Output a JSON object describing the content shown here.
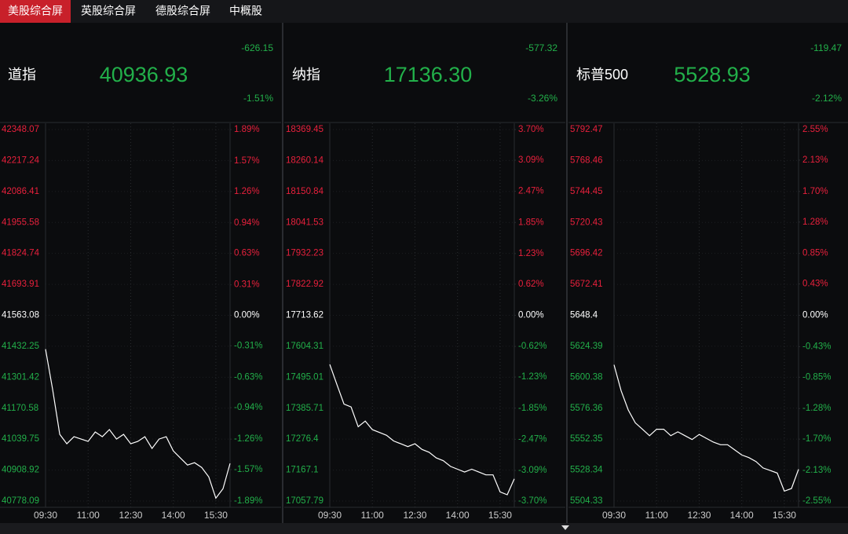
{
  "tabs": [
    {
      "label": "美股综合屏",
      "active": true
    },
    {
      "label": "英股综合屏",
      "active": false
    },
    {
      "label": "德股综合屏",
      "active": false
    },
    {
      "label": "中概股",
      "active": false
    }
  ],
  "panels": [
    {
      "name": "道指",
      "price": "40936.93",
      "change": "-626.15",
      "change_pct": "-1.51%",
      "chart": {
        "type": "line",
        "color": "#ffffff",
        "categories": [
          "09:30",
          null,
          null,
          null,
          null,
          null,
          "11:00",
          null,
          null,
          null,
          null,
          null,
          "12:30",
          null,
          null,
          null,
          null,
          null,
          "14:00",
          null,
          null,
          null,
          null,
          null,
          "15:30",
          null,
          null
        ],
        "values": [
          41420,
          41250,
          41060,
          41020,
          41050,
          41040,
          41030,
          41070,
          41050,
          41080,
          41040,
          41060,
          41020,
          41030,
          41050,
          41000,
          41040,
          41050,
          40990,
          40960,
          40930,
          40940,
          40920,
          40880,
          40790,
          40830,
          40936.93
        ],
        "ylim": [
          40778.09,
          42348.07
        ],
        "yticks": [
          42348.07,
          42217.24,
          42086.41,
          41955.58,
          41824.74,
          41693.91,
          41563.08,
          41432.25,
          41301.42,
          41170.58,
          41039.75,
          40908.92,
          40778.09
        ],
        "y2lim": [
          -1.89,
          1.89
        ],
        "y2ticks": [
          {
            "value": 1.89,
            "label": "1.89%"
          },
          {
            "value": 1.57,
            "label": "1.57%"
          },
          {
            "value": 1.26,
            "label": "1.26%"
          },
          {
            "value": 0.94,
            "label": "0.94%"
          },
          {
            "value": 0.63,
            "label": "0.63%"
          },
          {
            "value": 0.31,
            "label": "0.31%"
          },
          {
            "value": 0,
            "label": "0.00%"
          },
          {
            "value": -0.31,
            "label": "-0.31%"
          },
          {
            "value": -0.63,
            "label": "-0.63%"
          },
          {
            "value": -0.94,
            "label": "-0.94%"
          },
          {
            "value": -1.26,
            "label": "-1.26%"
          },
          {
            "value": -1.57,
            "label": "-1.57%"
          },
          {
            "value": -1.89,
            "label": "-1.89%"
          }
        ]
      }
    },
    {
      "name": "纳指",
      "price": "17136.30",
      "change": "-577.32",
      "change_pct": "-3.26%",
      "chart": {
        "type": "line",
        "color": "#ffffff",
        "categories": [
          "09:30",
          null,
          null,
          null,
          null,
          null,
          "11:00",
          null,
          null,
          null,
          null,
          null,
          "12:30",
          null,
          null,
          null,
          null,
          null,
          "14:00",
          null,
          null,
          null,
          null,
          null,
          "15:30",
          null,
          null
        ],
        "values": [
          17540,
          17470,
          17400,
          17390,
          17320,
          17340,
          17310,
          17300,
          17290,
          17270,
          17260,
          17250,
          17260,
          17240,
          17230,
          17210,
          17200,
          17180,
          17170,
          17160,
          17170,
          17160,
          17150,
          17150,
          17090,
          17080,
          17136.3
        ],
        "ylim": [
          17057.79,
          18369.45
        ],
        "yticks": [
          18369.45,
          18260.14,
          18150.84,
          18041.53,
          17932.23,
          17822.92,
          17713.62,
          17604.31,
          17495.01,
          17385.71,
          17276.4,
          17167.1,
          17057.79
        ],
        "y2lim": [
          -3.7,
          3.7
        ],
        "y2ticks": [
          {
            "value": 3.7,
            "label": "3.70%"
          },
          {
            "value": 3.09,
            "label": "3.09%"
          },
          {
            "value": 2.47,
            "label": "2.47%"
          },
          {
            "value": 1.85,
            "label": "1.85%"
          },
          {
            "value": 1.23,
            "label": "1.23%"
          },
          {
            "value": 0.62,
            "label": "0.62%"
          },
          {
            "value": 0,
            "label": "0.00%"
          },
          {
            "value": -0.62,
            "label": "-0.62%"
          },
          {
            "value": -1.23,
            "label": "-1.23%"
          },
          {
            "value": -1.85,
            "label": "-1.85%"
          },
          {
            "value": -2.47,
            "label": "-2.47%"
          },
          {
            "value": -3.09,
            "label": "-3.09%"
          },
          {
            "value": -3.7,
            "label": "-3.70%"
          }
        ]
      }
    },
    {
      "name": "标普500",
      "price": "5528.93",
      "change": "-119.47",
      "change_pct": "-2.12%",
      "chart": {
        "type": "line",
        "color": "#ffffff",
        "categories": [
          "09:30",
          null,
          null,
          null,
          null,
          null,
          "11:00",
          null,
          null,
          null,
          null,
          null,
          "12:30",
          null,
          null,
          null,
          null,
          null,
          "14:00",
          null,
          null,
          null,
          null,
          null,
          "15:30",
          null,
          null
        ],
        "values": [
          5610,
          5590,
          5575,
          5565,
          5560,
          5555,
          5560,
          5560,
          5555,
          5558,
          5555,
          5552,
          5556,
          5553,
          5550,
          5548,
          5548,
          5544,
          5540,
          5538,
          5535,
          5530,
          5528,
          5526,
          5512,
          5514,
          5528.93
        ],
        "ylim": [
          5504.33,
          5792.47
        ],
        "yticks": [
          5792.47,
          5768.46,
          5744.45,
          5720.43,
          5696.42,
          5672.41,
          5648.4,
          5624.39,
          5600.38,
          5576.36,
          5552.35,
          5528.34,
          5504.33
        ],
        "y2lim": [
          -2.55,
          2.55
        ],
        "y2ticks": [
          {
            "value": 2.55,
            "label": "2.55%"
          },
          {
            "value": 2.13,
            "label": "2.13%"
          },
          {
            "value": 1.7,
            "label": "1.70%"
          },
          {
            "value": 1.28,
            "label": "1.28%"
          },
          {
            "value": 0.85,
            "label": "0.85%"
          },
          {
            "value": 0.43,
            "label": "0.43%"
          },
          {
            "value": 0,
            "label": "0.00%"
          },
          {
            "value": -0.43,
            "label": "-0.43%"
          },
          {
            "value": -0.85,
            "label": "-0.85%"
          },
          {
            "value": -1.28,
            "label": "-1.28%"
          },
          {
            "value": -1.7,
            "label": "-1.70%"
          },
          {
            "value": -2.13,
            "label": "-2.13%"
          },
          {
            "value": -2.55,
            "label": "-2.55%"
          }
        ]
      }
    }
  ]
}
